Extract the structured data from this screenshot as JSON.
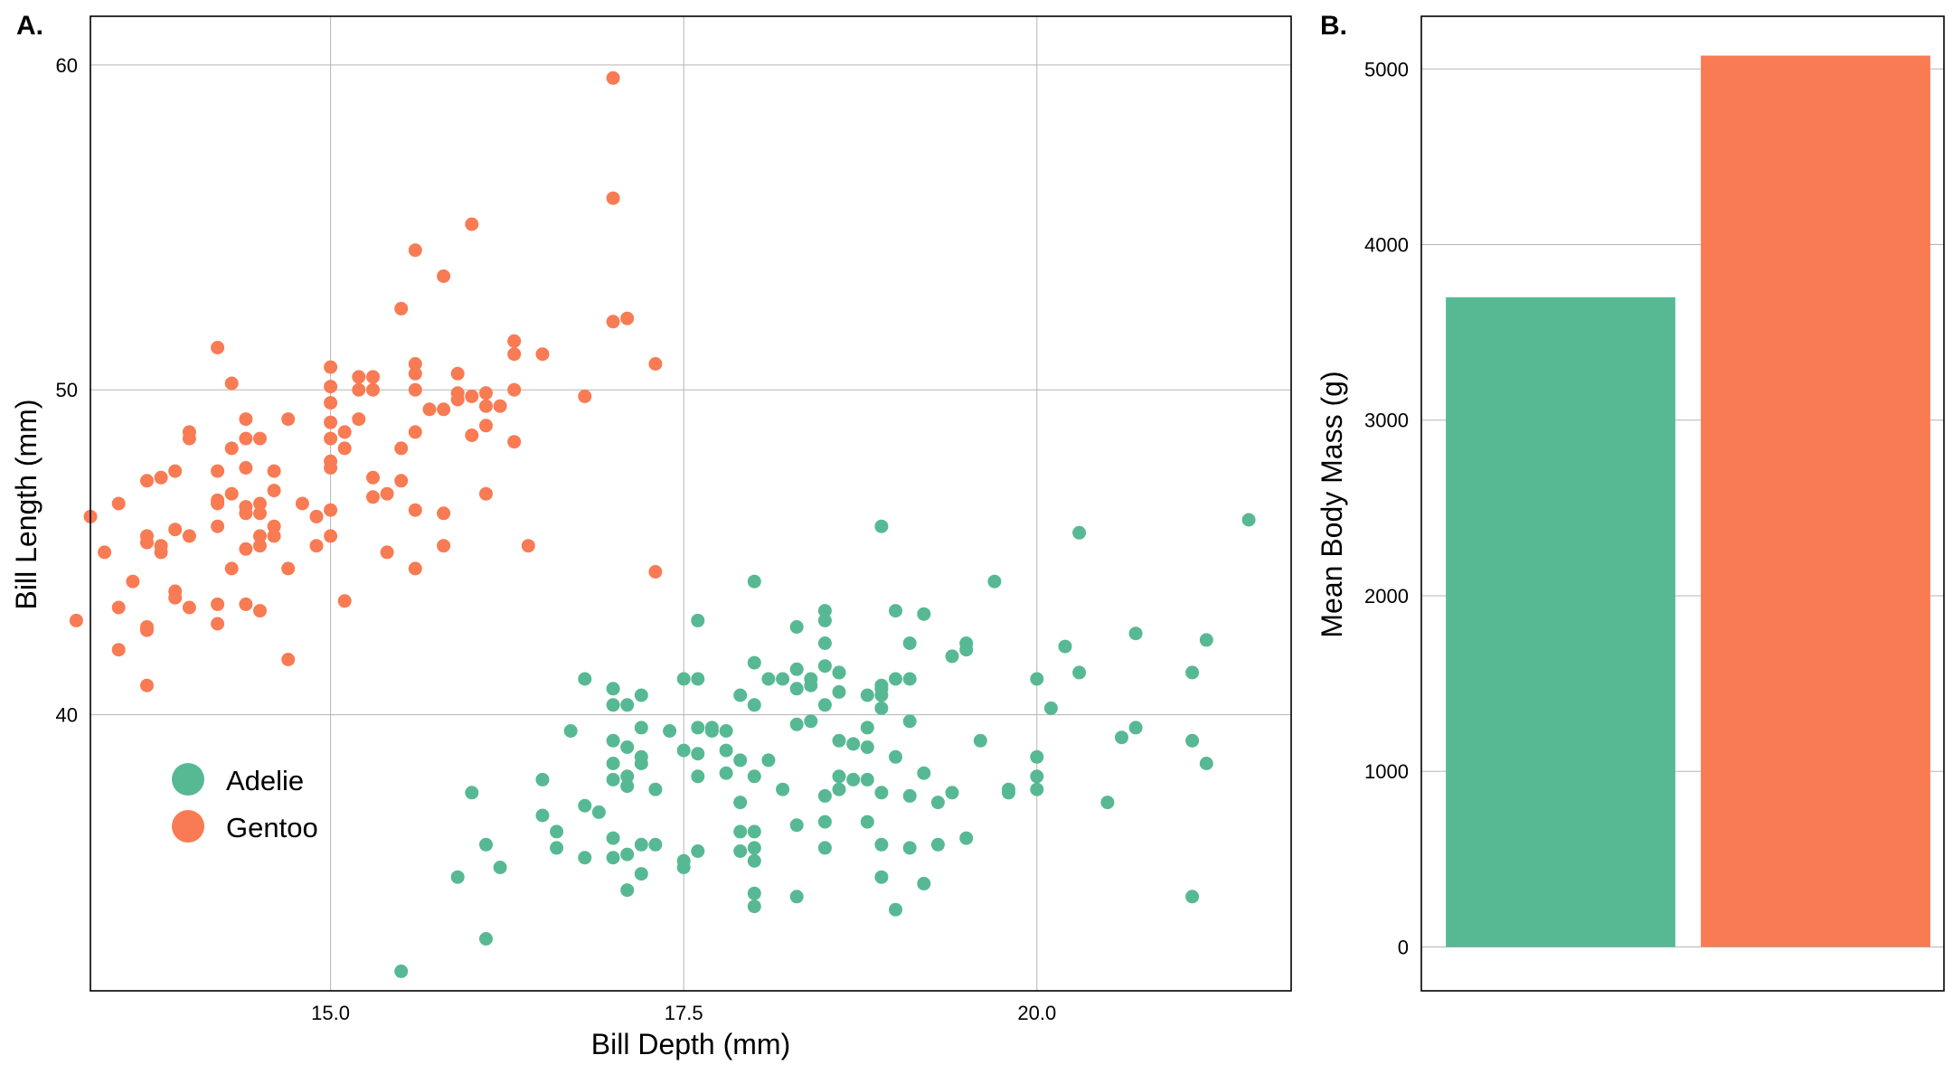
{
  "chart_data": [
    {
      "panel_label": "A.",
      "type": "scatter",
      "xlabel": "Bill Depth (mm)",
      "ylabel": "Bill Length (mm)",
      "xlim": [
        13.3,
        21.8
      ],
      "ylim": [
        31.5,
        61.5
      ],
      "xticks": [
        15.0,
        17.5,
        20.0
      ],
      "xtick_labels": [
        "15.0",
        "17.5",
        "20.0"
      ],
      "yticks": [
        40,
        50,
        60
      ],
      "ytick_labels": [
        "40",
        "50",
        "60"
      ],
      "grid": true,
      "legend_position": "bottom-left",
      "series": [
        {
          "name": "Adelie",
          "color": "#57b994",
          "points": [
            [
              15.5,
              32.1
            ],
            [
              16.1,
              33.1
            ],
            [
              19.0,
              34.0
            ],
            [
              17.1,
              34.6
            ],
            [
              18.0,
              34.5
            ],
            [
              18.0,
              34.1
            ],
            [
              18.3,
              34.4
            ],
            [
              17.2,
              35.1
            ],
            [
              19.2,
              34.8
            ],
            [
              15.9,
              35.0
            ],
            [
              18.9,
              35.0
            ],
            [
              16.2,
              35.3
            ],
            [
              17.5,
              35.3
            ],
            [
              17.5,
              35.5
            ],
            [
              18.9,
              36.0
            ],
            [
              16.1,
              36.0
            ],
            [
              16.6,
              35.9
            ],
            [
              17.0,
              35.6
            ],
            [
              17.1,
              35.7
            ],
            [
              17.3,
              36.0
            ],
            [
              17.9,
              35.8
            ],
            [
              18.0,
              35.9
            ],
            [
              18.0,
              35.5
            ],
            [
              18.5,
              35.9
            ],
            [
              19.1,
              35.9
            ],
            [
              19.3,
              36.0
            ],
            [
              19.5,
              36.2
            ],
            [
              16.8,
              35.6
            ],
            [
              16.6,
              36.4
            ],
            [
              17.0,
              36.2
            ],
            [
              17.2,
              36.0
            ],
            [
              17.6,
              35.8
            ],
            [
              17.9,
              36.4
            ],
            [
              18.0,
              36.4
            ],
            [
              18.3,
              36.6
            ],
            [
              18.5,
              36.7
            ],
            [
              18.8,
              36.7
            ],
            [
              16.5,
              36.9
            ],
            [
              16.8,
              37.2
            ],
            [
              16.9,
              37.0
            ],
            [
              17.1,
              37.8
            ],
            [
              17.3,
              37.7
            ],
            [
              17.9,
              37.3
            ],
            [
              18.2,
              37.7
            ],
            [
              18.5,
              37.5
            ],
            [
              18.6,
              37.7
            ],
            [
              18.9,
              37.6
            ],
            [
              19.1,
              37.5
            ],
            [
              19.3,
              37.3
            ],
            [
              19.4,
              37.6
            ],
            [
              19.8,
              37.6
            ],
            [
              20.0,
              37.7
            ],
            [
              16.0,
              37.6
            ],
            [
              16.5,
              38.0
            ],
            [
              17.0,
              38.5
            ],
            [
              17.1,
              38.1
            ],
            [
              17.2,
              38.7
            ],
            [
              17.6,
              38.1
            ],
            [
              17.8,
              38.2
            ],
            [
              18.0,
              38.1
            ],
            [
              18.6,
              38.1
            ],
            [
              18.7,
              38.0
            ],
            [
              18.8,
              38.0
            ],
            [
              19.2,
              38.2
            ],
            [
              20.0,
              38.1
            ],
            [
              17.0,
              38.0
            ],
            [
              17.2,
              38.5
            ],
            [
              17.5,
              38.9
            ],
            [
              17.6,
              38.8
            ],
            [
              17.8,
              38.9
            ],
            [
              17.9,
              38.6
            ],
            [
              18.1,
              38.6
            ],
            [
              18.6,
              39.2
            ],
            [
              18.7,
              39.1
            ],
            [
              18.8,
              39.0
            ],
            [
              19.0,
              38.7
            ],
            [
              19.6,
              39.2
            ],
            [
              20.0,
              38.7
            ],
            [
              16.7,
              39.5
            ],
            [
              17.0,
              39.2
            ],
            [
              17.1,
              39.0
            ],
            [
              17.2,
              39.6
            ],
            [
              17.4,
              39.5
            ],
            [
              17.7,
              39.6
            ],
            [
              17.8,
              39.5
            ],
            [
              18.3,
              39.7
            ],
            [
              18.4,
              39.8
            ],
            [
              18.8,
              39.6
            ],
            [
              19.1,
              39.8
            ],
            [
              20.6,
              39.3
            ],
            [
              20.7,
              39.6
            ],
            [
              21.1,
              39.2
            ],
            [
              17.6,
              39.6
            ],
            [
              17.7,
              39.5
            ],
            [
              16.8,
              41.1
            ],
            [
              17.0,
              40.8
            ],
            [
              17.2,
              40.6
            ],
            [
              17.0,
              40.3
            ],
            [
              17.1,
              40.3
            ],
            [
              17.5,
              41.1
            ],
            [
              17.6,
              41.1
            ],
            [
              17.9,
              40.6
            ],
            [
              18.0,
              40.3
            ],
            [
              18.1,
              41.1
            ],
            [
              18.2,
              41.1
            ],
            [
              18.3,
              40.8
            ],
            [
              18.4,
              40.9
            ],
            [
              18.5,
              40.3
            ],
            [
              18.6,
              40.7
            ],
            [
              18.8,
              40.6
            ],
            [
              18.9,
              40.2
            ],
            [
              18.9,
              40.9
            ],
            [
              19.0,
              41.1
            ],
            [
              19.1,
              41.1
            ],
            [
              20.0,
              41.1
            ],
            [
              20.1,
              40.2
            ],
            [
              17.6,
              42.9
            ],
            [
              18.0,
              41.6
            ],
            [
              18.3,
              41.4
            ],
            [
              18.5,
              41.5
            ],
            [
              18.5,
              42.2
            ],
            [
              18.6,
              41.3
            ],
            [
              18.5,
              42.9
            ],
            [
              18.3,
              42.7
            ],
            [
              19.1,
              42.2
            ],
            [
              19.4,
              41.8
            ],
            [
              19.5,
              42.0
            ],
            [
              19.5,
              42.2
            ],
            [
              20.2,
              42.1
            ],
            [
              20.3,
              41.3
            ],
            [
              20.7,
              42.5
            ],
            [
              21.1,
              41.3
            ],
            [
              21.2,
              42.3
            ],
            [
              18.0,
              44.1
            ],
            [
              18.5,
              43.2
            ],
            [
              19.0,
              43.2
            ],
            [
              19.2,
              43.1
            ],
            [
              19.7,
              44.1
            ],
            [
              18.9,
              45.8
            ],
            [
              20.3,
              45.6
            ],
            [
              21.5,
              46.0
            ],
            [
              21.2,
              38.5
            ],
            [
              21.1,
              34.4
            ],
            [
              20.5,
              37.3
            ],
            [
              19.8,
              37.7
            ],
            [
              18.9,
              40.8
            ],
            [
              18.9,
              40.6
            ],
            [
              18.6,
              41.3
            ],
            [
              18.4,
              41.1
            ]
          ]
        },
        {
          "name": "Gentoo",
          "color": "#f87b53",
          "points": [
            [
              17.0,
              59.6
            ],
            [
              17.0,
              55.9
            ],
            [
              16.0,
              55.1
            ],
            [
              15.6,
              54.3
            ],
            [
              15.8,
              53.5
            ],
            [
              15.5,
              52.5
            ],
            [
              17.0,
              52.1
            ],
            [
              17.1,
              52.2
            ],
            [
              16.3,
              51.5
            ],
            [
              16.3,
              51.1
            ],
            [
              16.5,
              51.1
            ],
            [
              17.3,
              50.8
            ],
            [
              15.6,
              50.8
            ],
            [
              15.6,
              50.5
            ],
            [
              15.0,
              50.7
            ],
            [
              15.2,
              50.4
            ],
            [
              15.3,
              50.4
            ],
            [
              15.9,
              50.5
            ],
            [
              15.0,
              50.1
            ],
            [
              15.2,
              50.0
            ],
            [
              15.3,
              50.0
            ],
            [
              15.6,
              50.0
            ],
            [
              15.9,
              49.9
            ],
            [
              15.9,
              49.7
            ],
            [
              16.1,
              49.9
            ],
            [
              16.3,
              50.0
            ],
            [
              16.8,
              49.8
            ],
            [
              16.0,
              49.8
            ],
            [
              16.1,
              49.5
            ],
            [
              16.2,
              49.5
            ],
            [
              15.0,
              49.6
            ],
            [
              14.3,
              50.2
            ],
            [
              15.2,
              49.1
            ],
            [
              15.0,
              49.0
            ],
            [
              14.7,
              49.1
            ],
            [
              14.4,
              49.1
            ],
            [
              14.0,
              48.7
            ],
            [
              14.0,
              48.5
            ],
            [
              14.4,
              48.5
            ],
            [
              14.5,
              48.5
            ],
            [
              15.1,
              48.7
            ],
            [
              15.0,
              48.5
            ],
            [
              15.1,
              48.2
            ],
            [
              15.5,
              48.2
            ],
            [
              15.6,
              48.7
            ],
            [
              15.7,
              49.4
            ],
            [
              15.8,
              49.4
            ],
            [
              16.0,
              48.6
            ],
            [
              16.1,
              48.9
            ],
            [
              16.3,
              48.4
            ],
            [
              13.9,
              47.5
            ],
            [
              14.2,
              47.5
            ],
            [
              14.4,
              47.6
            ],
            [
              14.6,
              47.5
            ],
            [
              15.0,
              47.8
            ],
            [
              15.0,
              47.6
            ],
            [
              15.3,
              47.3
            ],
            [
              15.5,
              47.2
            ],
            [
              13.7,
              47.2
            ],
            [
              13.8,
              47.3
            ],
            [
              14.3,
              48.2
            ],
            [
              14.2,
              51.3
            ],
            [
              13.5,
              46.5
            ],
            [
              13.9,
              45.7
            ],
            [
              14.2,
              45.8
            ],
            [
              14.4,
              46.2
            ],
            [
              14.5,
              46.5
            ],
            [
              14.5,
              46.2
            ],
            [
              14.2,
              46.6
            ],
            [
              14.3,
              46.8
            ],
            [
              14.6,
              46.9
            ],
            [
              14.6,
              45.8
            ],
            [
              14.8,
              46.5
            ],
            [
              14.9,
              46.1
            ],
            [
              15.0,
              46.3
            ],
            [
              15.3,
              46.7
            ],
            [
              15.4,
              46.8
            ],
            [
              15.6,
              46.3
            ],
            [
              15.8,
              46.2
            ],
            [
              16.1,
              46.8
            ],
            [
              13.3,
              46.1
            ],
            [
              13.7,
              45.5
            ],
            [
              13.7,
              45.3
            ],
            [
              13.8,
              45.2
            ],
            [
              13.8,
              45.0
            ],
            [
              14.0,
              45.5
            ],
            [
              14.2,
              46.5
            ],
            [
              14.4,
              46.4
            ],
            [
              14.5,
              45.5
            ],
            [
              14.5,
              45.2
            ],
            [
              14.6,
              45.5
            ],
            [
              14.4,
              45.1
            ],
            [
              14.9,
              45.2
            ],
            [
              15.0,
              45.5
            ],
            [
              15.4,
              45.0
            ],
            [
              15.8,
              45.2
            ],
            [
              13.4,
              45.0
            ],
            [
              13.5,
              43.3
            ],
            [
              13.6,
              44.1
            ],
            [
              13.9,
              43.8
            ],
            [
              13.9,
              43.6
            ],
            [
              14.0,
              43.3
            ],
            [
              14.2,
              43.4
            ],
            [
              14.4,
              43.4
            ],
            [
              14.5,
              43.2
            ],
            [
              14.3,
              44.5
            ],
            [
              14.7,
              44.5
            ],
            [
              15.1,
              43.5
            ],
            [
              15.6,
              44.5
            ],
            [
              16.4,
              45.2
            ],
            [
              17.3,
              44.4
            ],
            [
              13.2,
              42.9
            ],
            [
              13.5,
              42.0
            ],
            [
              13.7,
              42.7
            ],
            [
              13.7,
              42.6
            ],
            [
              14.2,
              42.8
            ],
            [
              14.7,
              41.7
            ],
            [
              13.7,
              40.9
            ]
          ]
        }
      ]
    },
    {
      "panel_label": "B.",
      "type": "bar",
      "categories": [
        "Adelie",
        "Gentoo"
      ],
      "values": [
        3700,
        5076
      ],
      "colors": [
        "#57b994",
        "#f87b53"
      ],
      "xlabel": "",
      "ylabel": "Mean Body Mass (g)",
      "ylim": [
        -250,
        5300
      ],
      "yticks": [
        0,
        1000,
        2000,
        3000,
        4000,
        5000
      ],
      "ytick_labels": [
        "0",
        "1000",
        "2000",
        "3000",
        "4000",
        "5000"
      ],
      "grid": true
    }
  ]
}
